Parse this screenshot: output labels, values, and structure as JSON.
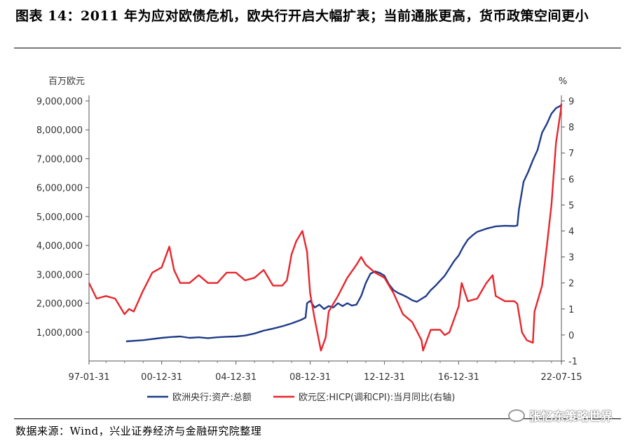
{
  "title": "图表 14：2011 年为应对欧债危机，欧央行开启大幅扩表；当前通胀更高，货币政策空间更小",
  "source": "数据来源：Wind，兴业证券经济与金融研究院整理",
  "watermark": "张忆东策略世界",
  "watermark_icon": "wechat-icon",
  "chart_data": {
    "type": "line",
    "left_unit": "百万欧元",
    "right_unit": "%",
    "left_ticks": [
      "9,000,000",
      "8,000,000",
      "7,000,000",
      "6,000,000",
      "5,000,000",
      "4,000,000",
      "3,000,000",
      "2,000,000",
      "1,000,000"
    ],
    "right_ticks": [
      "9",
      "8",
      "7",
      "6",
      "5",
      "4",
      "3",
      "2",
      "1",
      "0",
      "-1"
    ],
    "x_tick_labels": [
      "97-01-31",
      "00-12-31",
      "04-12-31",
      "08-12-31",
      "12-12-31",
      "16-12-31",
      "22-07-15"
    ],
    "x_range": [
      "1997-01-31",
      "2022-07-15"
    ],
    "ylim_left": [
      0,
      9000000
    ],
    "ylim_right": [
      -1,
      9
    ],
    "grid": false,
    "legend_position": "bottom",
    "series": [
      {
        "name": "欧洲央行:资产:总额",
        "color": "#1f3c88",
        "axis": "left",
        "points": [
          [
            "1999-01-31",
            680000
          ],
          [
            "1999-12-31",
            720000
          ],
          [
            "2000-12-31",
            800000
          ],
          [
            "2001-06-30",
            830000
          ],
          [
            "2001-12-31",
            850000
          ],
          [
            "2002-06-30",
            800000
          ],
          [
            "2002-12-31",
            820000
          ],
          [
            "2003-06-30",
            790000
          ],
          [
            "2003-12-31",
            820000
          ],
          [
            "2004-06-30",
            840000
          ],
          [
            "2004-12-31",
            850000
          ],
          [
            "2005-06-30",
            880000
          ],
          [
            "2005-12-31",
            950000
          ],
          [
            "2006-06-30",
            1050000
          ],
          [
            "2006-12-31",
            1120000
          ],
          [
            "2007-06-30",
            1200000
          ],
          [
            "2007-12-31",
            1300000
          ],
          [
            "2008-06-30",
            1420000
          ],
          [
            "2008-09-30",
            1500000
          ],
          [
            "2008-10-31",
            2000000
          ],
          [
            "2008-12-31",
            2080000
          ],
          [
            "2009-03-31",
            1850000
          ],
          [
            "2009-06-30",
            1950000
          ],
          [
            "2009-09-30",
            1800000
          ],
          [
            "2009-12-31",
            1900000
          ],
          [
            "2010-03-31",
            1850000
          ],
          [
            "2010-06-30",
            2000000
          ],
          [
            "2010-09-30",
            1900000
          ],
          [
            "2010-12-31",
            2000000
          ],
          [
            "2011-03-31",
            1920000
          ],
          [
            "2011-06-30",
            1950000
          ],
          [
            "2011-09-30",
            2250000
          ],
          [
            "2011-12-31",
            2700000
          ],
          [
            "2012-03-31",
            3020000
          ],
          [
            "2012-06-30",
            3100000
          ],
          [
            "2012-09-30",
            3050000
          ],
          [
            "2012-12-31",
            2950000
          ],
          [
            "2013-03-31",
            2650000
          ],
          [
            "2013-06-30",
            2450000
          ],
          [
            "2013-09-30",
            2350000
          ],
          [
            "2013-12-31",
            2280000
          ],
          [
            "2014-03-31",
            2200000
          ],
          [
            "2014-06-30",
            2100000
          ],
          [
            "2014-09-30",
            2050000
          ],
          [
            "2014-12-31",
            2150000
          ],
          [
            "2015-03-31",
            2250000
          ],
          [
            "2015-06-30",
            2450000
          ],
          [
            "2015-09-30",
            2600000
          ],
          [
            "2015-12-31",
            2780000
          ],
          [
            "2016-03-31",
            2950000
          ],
          [
            "2016-06-30",
            3200000
          ],
          [
            "2016-09-30",
            3450000
          ],
          [
            "2016-12-31",
            3650000
          ],
          [
            "2017-03-31",
            3950000
          ],
          [
            "2017-06-30",
            4200000
          ],
          [
            "2017-09-30",
            4350000
          ],
          [
            "2017-12-31",
            4470000
          ],
          [
            "2018-06-30",
            4580000
          ],
          [
            "2018-12-31",
            4660000
          ],
          [
            "2019-06-30",
            4680000
          ],
          [
            "2019-12-31",
            4670000
          ],
          [
            "2020-02-29",
            4690000
          ],
          [
            "2020-03-31",
            5250000
          ],
          [
            "2020-06-30",
            6200000
          ],
          [
            "2020-09-30",
            6550000
          ],
          [
            "2020-12-31",
            6950000
          ],
          [
            "2021-03-31",
            7300000
          ],
          [
            "2021-06-30",
            7900000
          ],
          [
            "2021-09-30",
            8200000
          ],
          [
            "2021-12-31",
            8560000
          ],
          [
            "2022-03-31",
            8750000
          ],
          [
            "2022-07-15",
            8850000
          ]
        ]
      },
      {
        "name": "欧元区:HICP(调和CPI):当月同比(右轴)",
        "color": "#e8262c",
        "axis": "right",
        "points": [
          [
            "1997-01-31",
            2.0
          ],
          [
            "1997-06-30",
            1.4
          ],
          [
            "1997-12-31",
            1.5
          ],
          [
            "1998-06-30",
            1.4
          ],
          [
            "1998-12-31",
            0.8
          ],
          [
            "1999-03-31",
            1.0
          ],
          [
            "1999-06-30",
            0.9
          ],
          [
            "1999-12-31",
            1.7
          ],
          [
            "2000-06-30",
            2.4
          ],
          [
            "2000-12-31",
            2.6
          ],
          [
            "2001-05-31",
            3.4
          ],
          [
            "2001-08-31",
            2.5
          ],
          [
            "2001-12-31",
            2.0
          ],
          [
            "2002-06-30",
            2.0
          ],
          [
            "2002-12-31",
            2.3
          ],
          [
            "2003-06-30",
            2.0
          ],
          [
            "2003-12-31",
            2.0
          ],
          [
            "2004-06-30",
            2.4
          ],
          [
            "2004-12-31",
            2.4
          ],
          [
            "2005-06-30",
            2.1
          ],
          [
            "2005-12-31",
            2.2
          ],
          [
            "2006-06-30",
            2.5
          ],
          [
            "2006-12-31",
            1.9
          ],
          [
            "2007-06-30",
            1.9
          ],
          [
            "2007-09-30",
            2.1
          ],
          [
            "2007-12-31",
            3.1
          ],
          [
            "2008-03-31",
            3.6
          ],
          [
            "2008-07-31",
            4.0
          ],
          [
            "2008-10-31",
            3.2
          ],
          [
            "2008-12-31",
            1.6
          ],
          [
            "2009-03-31",
            0.6
          ],
          [
            "2009-07-31",
            -0.6
          ],
          [
            "2009-10-31",
            -0.1
          ],
          [
            "2009-12-31",
            0.9
          ],
          [
            "2010-06-30",
            1.5
          ],
          [
            "2010-12-31",
            2.2
          ],
          [
            "2011-06-30",
            2.7
          ],
          [
            "2011-09-30",
            3.0
          ],
          [
            "2011-12-31",
            2.7
          ],
          [
            "2012-06-30",
            2.4
          ],
          [
            "2012-12-31",
            2.2
          ],
          [
            "2013-06-30",
            1.6
          ],
          [
            "2013-12-31",
            0.8
          ],
          [
            "2014-06-30",
            0.5
          ],
          [
            "2014-12-31",
            -0.2
          ],
          [
            "2015-01-31",
            -0.6
          ],
          [
            "2015-06-30",
            0.2
          ],
          [
            "2015-12-31",
            0.2
          ],
          [
            "2016-03-31",
            0.0
          ],
          [
            "2016-06-30",
            0.1
          ],
          [
            "2016-12-31",
            1.1
          ],
          [
            "2017-02-28",
            2.0
          ],
          [
            "2017-06-30",
            1.3
          ],
          [
            "2017-12-31",
            1.4
          ],
          [
            "2018-06-30",
            2.0
          ],
          [
            "2018-10-31",
            2.3
          ],
          [
            "2018-12-31",
            1.5
          ],
          [
            "2019-06-30",
            1.3
          ],
          [
            "2019-12-31",
            1.3
          ],
          [
            "2020-02-29",
            1.2
          ],
          [
            "2020-05-31",
            0.1
          ],
          [
            "2020-08-31",
            -0.2
          ],
          [
            "2020-12-31",
            -0.3
          ],
          [
            "2021-01-31",
            0.9
          ],
          [
            "2021-06-30",
            1.9
          ],
          [
            "2021-09-30",
            3.4
          ],
          [
            "2021-12-31",
            5.0
          ],
          [
            "2022-03-31",
            7.4
          ],
          [
            "2022-06-30",
            8.6
          ],
          [
            "2022-07-15",
            8.9
          ]
        ]
      }
    ]
  }
}
